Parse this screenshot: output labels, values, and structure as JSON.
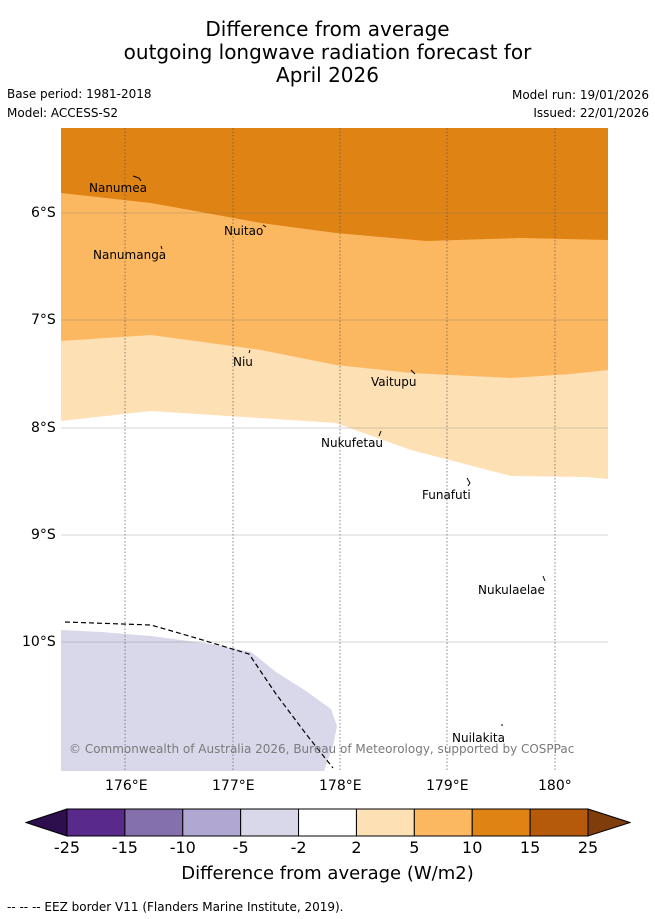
{
  "title": {
    "line1": "Difference from average",
    "line2": "outgoing longwave radiation forecast for",
    "line3": "April 2026"
  },
  "meta": {
    "base_period": "Base period: 1981-2018",
    "model": "Model: ACCESS-S2",
    "model_run": "Model run: 19/01/2026",
    "issued": "Issued: 22/01/2026"
  },
  "axes": {
    "lat_labels": [
      "6°S",
      "7°S",
      "8°S",
      "9°S",
      "10°S"
    ],
    "lon_labels": [
      "176°E",
      "177°E",
      "178°E",
      "179°E",
      "180°"
    ]
  },
  "places": [
    "Nanumea",
    "Nuitao",
    "Nanumanga",
    "Niu",
    "Vaitupu",
    "Nukufetau",
    "Funafuti",
    "Nukulaelae",
    "Nuilakita"
  ],
  "copyright": "© Commonwealth of Australia 2026, Bureau of Meteorology, supported by COSPPac",
  "colorbar": {
    "labels": [
      "-25",
      "-15",
      "-10",
      "-5",
      "-2",
      "2",
      "5",
      "10",
      "15",
      "25"
    ],
    "colors": {
      "below": "#2d0f4d",
      "bins": [
        "#5a2a8b",
        "#8470ad",
        "#b0a8d2",
        "#d8d8ea",
        "#ffffff",
        "#fde0b4",
        "#fcb860",
        "#e08315",
        "#b55a0a"
      ],
      "above": "#7f3d0b"
    },
    "title": "Difference from average (W/m2)"
  },
  "legend": {
    "eez": "--  --  -- EEZ border V11 (Flanders Marine Institute, 2019)."
  }
}
